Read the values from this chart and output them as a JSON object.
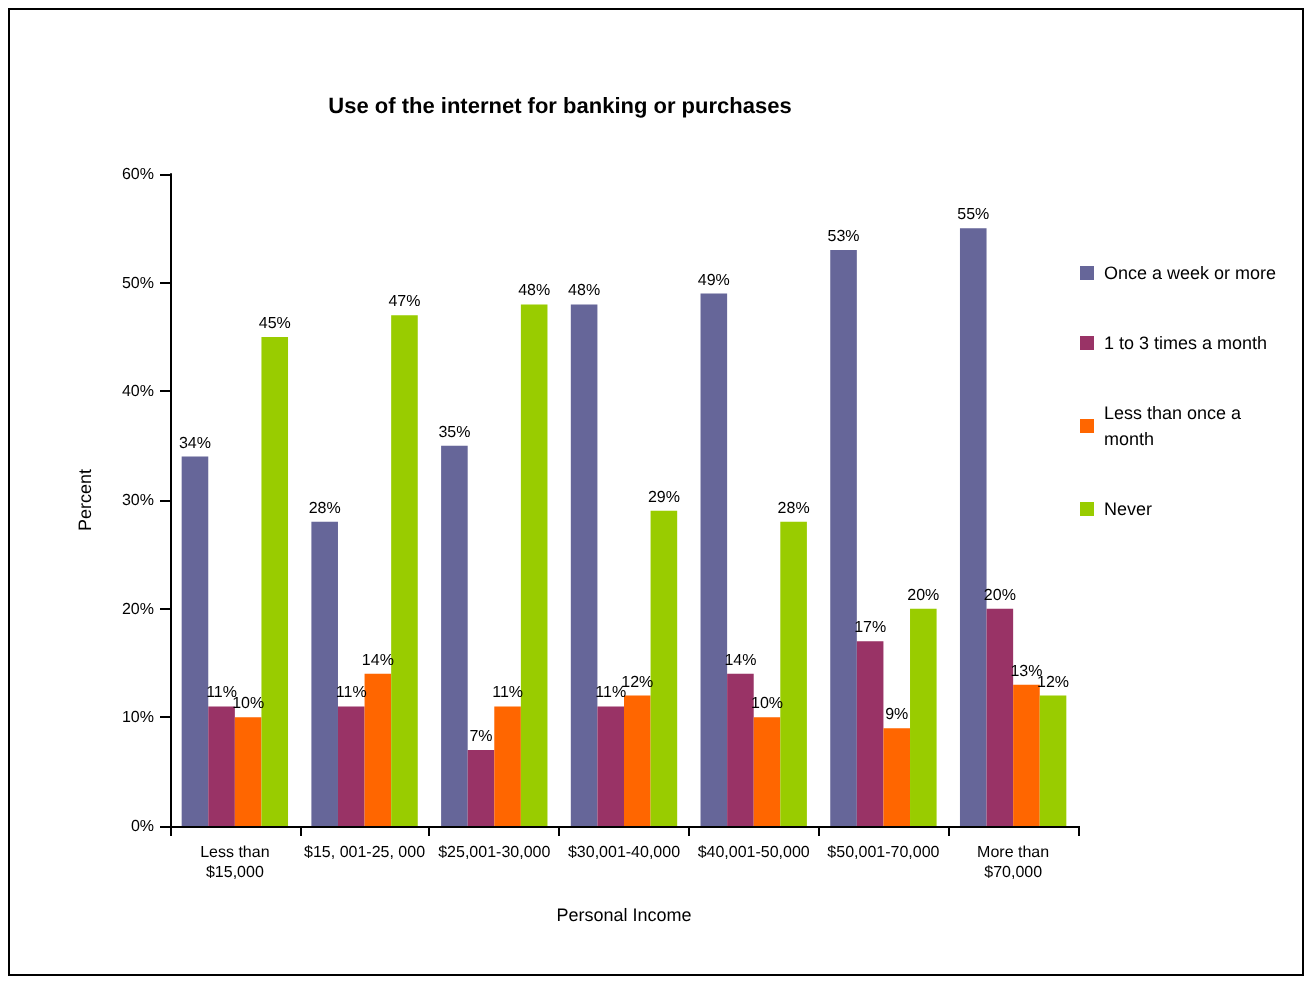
{
  "chart_data": {
    "type": "bar",
    "title": "Use of the internet for banking or purchases",
    "xlabel": "Personal Income",
    "ylabel": "Percent",
    "categories": [
      "Less than\n$15,000",
      "$15, 001-25, 000",
      "$25,001-30,000",
      "$30,001-40,000",
      "$40,001-50,000",
      "$50,001-70,000",
      "More than\n$70,000"
    ],
    "series": [
      {
        "name": "Once a week or more",
        "color": "#666699",
        "values": [
          34,
          28,
          35,
          48,
          49,
          53,
          55
        ],
        "value_labels": [
          "34%",
          "28%",
          "35%",
          "48%",
          "49%",
          "53%",
          "55%"
        ]
      },
      {
        "name": "1 to 3 times a month",
        "color": "#993366",
        "values": [
          11,
          11,
          7,
          11,
          14,
          17,
          20
        ],
        "value_labels": [
          "11%",
          "11%",
          "7%",
          "11%",
          "14%",
          "17%",
          "20%"
        ]
      },
      {
        "name": "Less than once a month",
        "color": "#ff6600",
        "values": [
          10,
          14,
          11,
          12,
          10,
          9,
          13
        ],
        "value_labels": [
          "10%",
          "14%",
          "11%",
          "12%",
          "10%",
          "9%",
          "13%"
        ]
      },
      {
        "name": "Never",
        "color": "#99cc00",
        "values": [
          45,
          47,
          48,
          29,
          28,
          20,
          12
        ],
        "value_labels": [
          "45%",
          "47%",
          "48%",
          "29%",
          "28%",
          "20%",
          "12%"
        ]
      }
    ],
    "ylim": [
      0,
      60
    ],
    "yticks": [
      {
        "value": 0,
        "label": "0%"
      },
      {
        "value": 10,
        "label": "10%"
      },
      {
        "value": 20,
        "label": "20%"
      },
      {
        "value": 30,
        "label": "30%"
      },
      {
        "value": 40,
        "label": "40%"
      },
      {
        "value": 50,
        "label": "50%"
      },
      {
        "value": 60,
        "label": "60%"
      }
    ],
    "grid": false,
    "legend": "right"
  }
}
